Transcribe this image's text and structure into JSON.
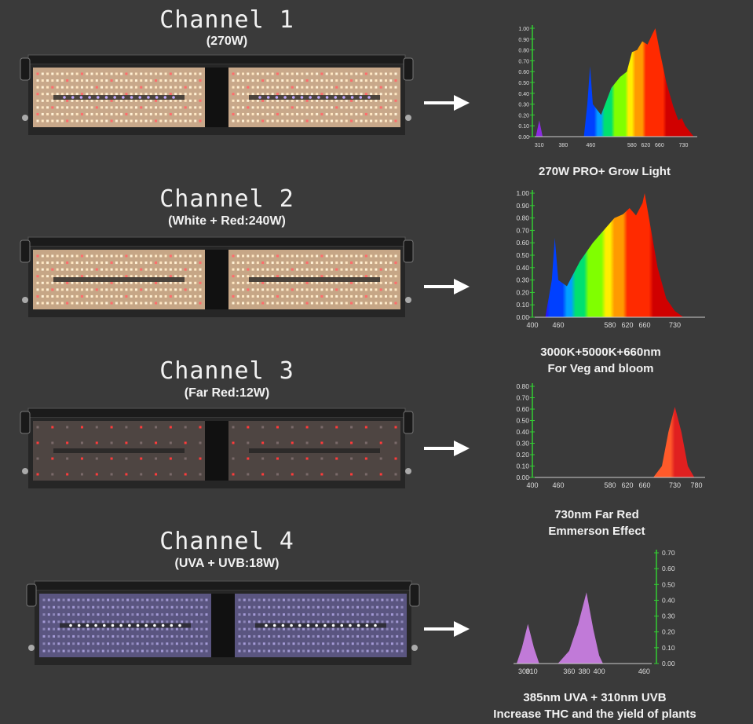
{
  "channels": [
    {
      "title": "Channel 1",
      "subtitle": "(270W)",
      "caption_lines": [
        "270W PRO+ Grow Light"
      ],
      "panel_tint": "#c8a88a",
      "chart_data": {
        "type": "area",
        "y_ticks": [
          "1.00",
          "0.90",
          "0.80",
          "0.70",
          "0.60",
          "0.50",
          "0.40",
          "0.30",
          "0.20",
          "0.10",
          "0.00"
        ],
        "x_ticks": [
          "310",
          "380",
          "460",
          "580",
          "620",
          "660",
          "730"
        ],
        "ylim": [
          0,
          1.0
        ],
        "grid": false,
        "points": [
          [
            300,
            0
          ],
          [
            310,
            0.15
          ],
          [
            320,
            0
          ],
          [
            440,
            0
          ],
          [
            450,
            0.3
          ],
          [
            458,
            0.65
          ],
          [
            466,
            0.3
          ],
          [
            490,
            0.2
          ],
          [
            520,
            0.45
          ],
          [
            545,
            0.55
          ],
          [
            565,
            0.6
          ],
          [
            580,
            0.78
          ],
          [
            595,
            0.8
          ],
          [
            610,
            0.88
          ],
          [
            625,
            0.85
          ],
          [
            640,
            0.95
          ],
          [
            648,
            1.0
          ],
          [
            660,
            0.8
          ],
          [
            680,
            0.5
          ],
          [
            700,
            0.28
          ],
          [
            715,
            0.15
          ],
          [
            725,
            0.17
          ],
          [
            735,
            0.1
          ],
          [
            760,
            0
          ]
        ]
      }
    },
    {
      "title": "Channel 2",
      "subtitle": "(White + Red:240W)",
      "caption_lines": [
        "3000K+5000K+660nm",
        "For Veg and bloom"
      ],
      "panel_tint": "#c6a686",
      "chart_data": {
        "type": "area",
        "y_ticks": [
          "1.00",
          "0.90",
          "0.80",
          "0.70",
          "0.60",
          "0.50",
          "0.40",
          "0.30",
          "0.20",
          "0.10",
          "0.00"
        ],
        "x_ticks": [
          "400",
          "460",
          "580",
          "620",
          "660",
          "730"
        ],
        "ylim": [
          0,
          1.0
        ],
        "grid": false,
        "points": [
          [
            430,
            0
          ],
          [
            445,
            0.3
          ],
          [
            452,
            0.64
          ],
          [
            460,
            0.3
          ],
          [
            480,
            0.25
          ],
          [
            510,
            0.45
          ],
          [
            540,
            0.6
          ],
          [
            570,
            0.72
          ],
          [
            590,
            0.8
          ],
          [
            610,
            0.83
          ],
          [
            625,
            0.88
          ],
          [
            640,
            0.82
          ],
          [
            655,
            0.92
          ],
          [
            660,
            1.0
          ],
          [
            670,
            0.8
          ],
          [
            690,
            0.4
          ],
          [
            710,
            0.15
          ],
          [
            730,
            0.05
          ],
          [
            750,
            0
          ]
        ]
      }
    },
    {
      "title": "Channel 3",
      "subtitle": "(Far Red:12W)",
      "caption_lines": [
        "730nm  Far Red",
        "Emmerson Effect"
      ],
      "panel_tint": "#4e4542",
      "chart_data": {
        "type": "area",
        "y_ticks": [
          "0.80",
          "0.70",
          "0.60",
          "0.50",
          "0.40",
          "0.30",
          "0.20",
          "0.10",
          "0.00"
        ],
        "x_ticks": [
          "400",
          "460",
          "580",
          "620",
          "660",
          "730",
          "780"
        ],
        "ylim": [
          0,
          0.8
        ],
        "grid": false,
        "points": [
          [
            680,
            0
          ],
          [
            700,
            0.1
          ],
          [
            715,
            0.4
          ],
          [
            730,
            0.62
          ],
          [
            745,
            0.4
          ],
          [
            760,
            0.1
          ],
          [
            775,
            0
          ]
        ]
      }
    },
    {
      "title": "Channel 4",
      "subtitle": "(UVA + UVB:18W)",
      "caption_lines": [
        "385nm UVA + 310nm  UVB",
        "Increase  THC and the yield of plants"
      ],
      "panel_tint": "#5a5580",
      "chart_data": {
        "type": "area",
        "y_ticks": [
          "0.70",
          "0.60",
          "0.50",
          "0.40",
          "0.30",
          "0.20",
          "0.10",
          "0.00"
        ],
        "x_ticks": [
          "300",
          "310",
          "360",
          "380",
          "400",
          "460"
        ],
        "ylim": [
          0,
          0.7
        ],
        "grid": false,
        "points": [
          [
            290,
            0
          ],
          [
            297,
            0.1
          ],
          [
            305,
            0.25
          ],
          [
            313,
            0.1
          ],
          [
            320,
            0
          ],
          [
            345,
            0
          ],
          [
            360,
            0.08
          ],
          [
            372,
            0.25
          ],
          [
            383,
            0.45
          ],
          [
            392,
            0.22
          ],
          [
            400,
            0.05
          ],
          [
            405,
            0
          ]
        ]
      }
    }
  ],
  "arrow_color": "#ffffff",
  "axis_color": "#33cc33"
}
